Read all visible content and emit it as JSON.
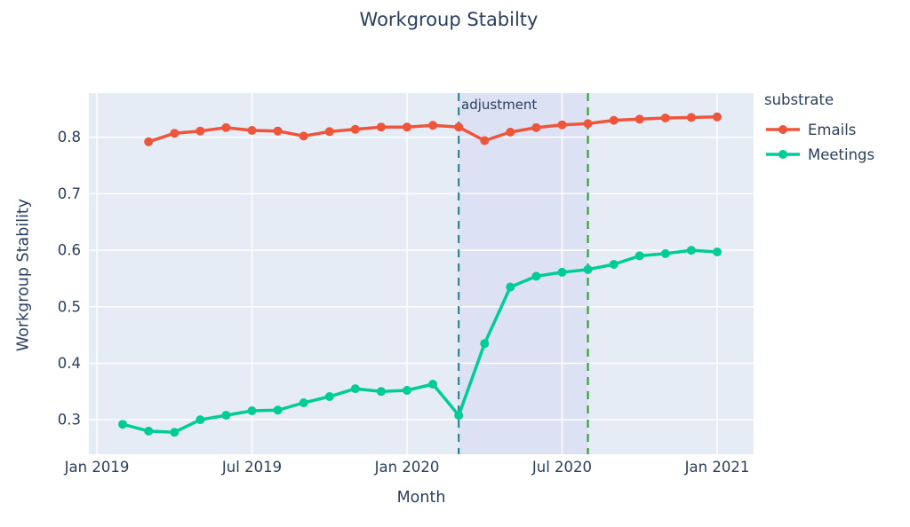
{
  "title": "Workgroup Stabilty",
  "text_color": "#2a3f5f",
  "chart_data": {
    "type": "line",
    "title": "Workgroup Stabilty",
    "xlabel": "Month",
    "ylabel": "Workgroup Stability",
    "legend_title": "substrate",
    "legend_position": "right",
    "grid": true,
    "plot_background": "#E5ECF6",
    "grid_color": "#ffffff",
    "x_unit": "month index, 0 = Jan 2019",
    "xlim": [
      -0.31,
      25.41
    ],
    "ylim": [
      0.239,
      0.878
    ],
    "x_ticks": [
      {
        "m": 0,
        "label": "Jan 2019"
      },
      {
        "m": 6,
        "label": "Jul 2019"
      },
      {
        "m": 12,
        "label": "Jan 2020"
      },
      {
        "m": 18,
        "label": "Jul 2020"
      },
      {
        "m": 24,
        "label": "Jan 2021"
      }
    ],
    "y_ticks": [
      0.3,
      0.4,
      0.5,
      0.6,
      0.7,
      0.8
    ],
    "series": [
      {
        "name": "Emails",
        "color": "#EF553B",
        "x": [
          2,
          3,
          4,
          5,
          6,
          7,
          8,
          9,
          10,
          11,
          12,
          13,
          14,
          15,
          16,
          17,
          18,
          19,
          20,
          21,
          22,
          23,
          24
        ],
        "months": [
          "2019-03",
          "2019-04",
          "2019-05",
          "2019-06",
          "2019-07",
          "2019-08",
          "2019-09",
          "2019-10",
          "2019-11",
          "2019-12",
          "2020-01",
          "2020-02",
          "2020-03",
          "2020-04",
          "2020-05",
          "2020-06",
          "2020-07",
          "2020-08",
          "2020-09",
          "2020-10",
          "2020-11",
          "2020-12",
          "2021-01"
        ],
        "values": [
          0.792,
          0.807,
          0.811,
          0.817,
          0.812,
          0.811,
          0.802,
          0.81,
          0.814,
          0.818,
          0.818,
          0.821,
          0.818,
          0.794,
          0.809,
          0.817,
          0.822,
          0.824,
          0.83,
          0.832,
          0.834,
          0.835,
          0.836
        ]
      },
      {
        "name": "Meetings",
        "color": "#00CC96",
        "x": [
          1,
          2,
          3,
          4,
          5,
          6,
          7,
          8,
          9,
          10,
          11,
          12,
          13,
          14,
          15,
          16,
          17,
          18,
          19,
          20,
          21,
          22,
          23,
          24
        ],
        "months": [
          "2019-02",
          "2019-03",
          "2019-04",
          "2019-05",
          "2019-06",
          "2019-07",
          "2019-08",
          "2019-09",
          "2019-10",
          "2019-11",
          "2019-12",
          "2020-01",
          "2020-02",
          "2020-03",
          "2020-04",
          "2020-05",
          "2020-06",
          "2020-07",
          "2020-08",
          "2020-09",
          "2020-10",
          "2020-11",
          "2020-12",
          "2021-01"
        ],
        "values": [
          0.292,
          0.28,
          0.278,
          0.3,
          0.308,
          0.316,
          0.317,
          0.33,
          0.341,
          0.355,
          0.35,
          0.352,
          0.363,
          0.308,
          0.435,
          0.535,
          0.554,
          0.561,
          0.566,
          0.575,
          0.59,
          0.594,
          0.6,
          0.597
        ]
      }
    ],
    "vlines": [
      {
        "m": 14,
        "month": "2020-03",
        "color": "#1a7f8c",
        "style": "dashed"
      },
      {
        "m": 19,
        "month": "2020-08",
        "color": "#23a023",
        "style": "dashed"
      }
    ],
    "vrect": {
      "from_m": 14,
      "to_m": 19,
      "fill": "#dce1f3"
    },
    "annotation": {
      "text": "adjustment",
      "month": "2020-03",
      "position": "top right of first vline"
    }
  }
}
